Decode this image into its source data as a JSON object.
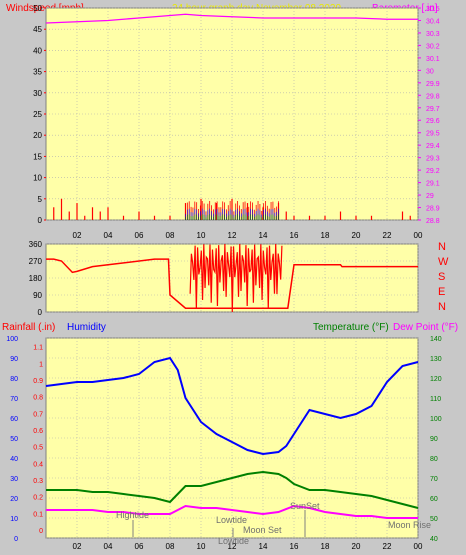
{
  "header": {
    "left_label": "Windspeed [mph]",
    "title": "24 hour graph day   November 08 2020",
    "right_label": "Barometer [.in]"
  },
  "bottom_header": {
    "rain_label": "Rainfall (.in)",
    "humidity_label": "Humidity",
    "temp_label": "Temperature (°F)",
    "dew_label": "Dew Point (°F)"
  },
  "compass": [
    "N",
    "W",
    "S",
    "E",
    "N"
  ],
  "annotations": {
    "hightide": "Hightide",
    "lowtide": "Lowtide",
    "moonset": "Moon Set",
    "lowtide2": "Lowtide",
    "sunset": "SunSet",
    "moonrise": "Moon Rise"
  },
  "colors": {
    "panel_bg": "#ffffa8",
    "wind": "#ff0000",
    "gust_blue": "#0000ff",
    "gust_green": "#008000",
    "barometer": "#ff00ff",
    "direction": "#ff0000",
    "humidity": "#0000ff",
    "temperature": "#008000",
    "dewpoint": "#ff00ff",
    "title": "#e8e800"
  },
  "chart_data": [
    {
      "type": "line",
      "name": "wind-barometer",
      "x_ticks": [
        "02",
        "04",
        "06",
        "08",
        "10",
        "12",
        "14",
        "16",
        "18",
        "20",
        "22",
        "00"
      ],
      "y_left_ticks": [
        0,
        5,
        10,
        15,
        20,
        25,
        30,
        35,
        40,
        45,
        50
      ],
      "y_right_ticks": [
        "28.8",
        "28.9",
        "29",
        "29.1",
        "29.2",
        "29.3",
        "29.4",
        "29.5",
        "29.6",
        "29.7",
        "29.8",
        "29.9",
        "30",
        "30.1",
        "30.2",
        "30.3",
        "30.4",
        "30.5"
      ],
      "ylim_left": [
        0,
        50
      ],
      "ylim_right": [
        28.8,
        30.5
      ],
      "barometer": {
        "x": [
          0,
          2,
          4,
          6,
          8,
          9,
          10,
          12,
          14,
          16,
          18,
          20,
          22,
          24
        ],
        "y": [
          30.38,
          30.39,
          30.4,
          30.42,
          30.44,
          30.45,
          30.44,
          30.43,
          30.42,
          30.42,
          30.42,
          30.42,
          30.41,
          30.41
        ]
      },
      "wind": {
        "x": [
          0.5,
          1,
          1.5,
          2,
          2.5,
          3,
          3.5,
          4,
          5,
          6,
          7,
          8,
          9,
          10,
          11,
          12,
          13,
          14,
          15,
          15.5,
          16,
          17,
          18,
          19,
          20,
          21,
          22,
          23,
          23.5
        ],
        "y": [
          3,
          5,
          2,
          4,
          1,
          3,
          2,
          3,
          1,
          2,
          1,
          1,
          4,
          5,
          4,
          5,
          4,
          3,
          4,
          2,
          1,
          1,
          1,
          2,
          1,
          1,
          0,
          2,
          1
        ]
      }
    },
    {
      "type": "line",
      "name": "wind-direction",
      "y_ticks": [
        0,
        90,
        180,
        270,
        360
      ],
      "ylim": [
        0,
        360
      ],
      "direction": {
        "x": [
          0,
          0.5,
          1,
          1.7,
          2,
          3,
          4,
          7,
          7.9,
          8,
          9,
          9.5,
          15,
          15.6,
          16,
          19,
          19.1,
          24
        ],
        "y": [
          280,
          280,
          270,
          210,
          215,
          240,
          250,
          280,
          280,
          90,
          20,
          20,
          20,
          20,
          250,
          250,
          240,
          240
        ]
      }
    },
    {
      "type": "line",
      "name": "rain-humidity-temp",
      "y_left1_ticks": [
        0,
        10,
        20,
        30,
        40,
        50,
        60,
        70,
        80,
        90,
        100
      ],
      "y_left2_ticks": [
        "0",
        "0.1",
        "0.2",
        "0.3",
        "0.4",
        "0.5",
        "0.6",
        "0.7",
        "0.8",
        "0.9",
        "1",
        "1.1"
      ],
      "y_right_ticks": [
        40,
        50,
        60,
        70,
        80,
        90,
        100,
        110,
        120,
        130,
        140
      ],
      "ylim_humidity": [
        0,
        100
      ],
      "ylim_temp": [
        40,
        140
      ],
      "humidity": {
        "x": [
          0,
          1,
          2,
          3,
          4,
          5,
          6,
          7,
          8,
          8.5,
          9,
          10,
          11,
          12,
          13,
          14,
          15,
          15.5,
          16,
          16.5,
          17,
          18,
          19,
          20,
          21,
          22,
          23,
          24
        ],
        "y": [
          76,
          77,
          78,
          78,
          79,
          80,
          82,
          88,
          90,
          84,
          70,
          58,
          52,
          48,
          44,
          42,
          43,
          46,
          52,
          58,
          64,
          62,
          60,
          62,
          66,
          78,
          86,
          88
        ]
      },
      "temperature": {
        "x": [
          0,
          1,
          2,
          3,
          4,
          5,
          6,
          7,
          8,
          8.5,
          9,
          10,
          11,
          12,
          13,
          14,
          15,
          15.5,
          16,
          17,
          18,
          19,
          20,
          21,
          22,
          23,
          24
        ],
        "y": [
          64,
          64,
          64,
          63,
          63,
          62,
          61,
          60,
          58,
          62,
          66,
          66,
          68,
          70,
          72,
          73,
          72,
          70,
          67,
          64,
          64,
          63,
          62,
          61,
          59,
          57,
          55
        ]
      },
      "dewpoint": {
        "x": [
          0,
          1,
          2,
          3,
          4,
          5,
          6,
          7,
          8,
          9,
          10,
          11,
          12,
          13,
          14,
          15,
          16,
          17,
          18,
          19,
          20,
          21,
          22,
          23,
          24
        ],
        "y": [
          54,
          54,
          54,
          54,
          53,
          53,
          52,
          52,
          52,
          56,
          55,
          55,
          54,
          53,
          52,
          53,
          56,
          55,
          53,
          52,
          51,
          51,
          50,
          50,
          50
        ]
      }
    }
  ]
}
